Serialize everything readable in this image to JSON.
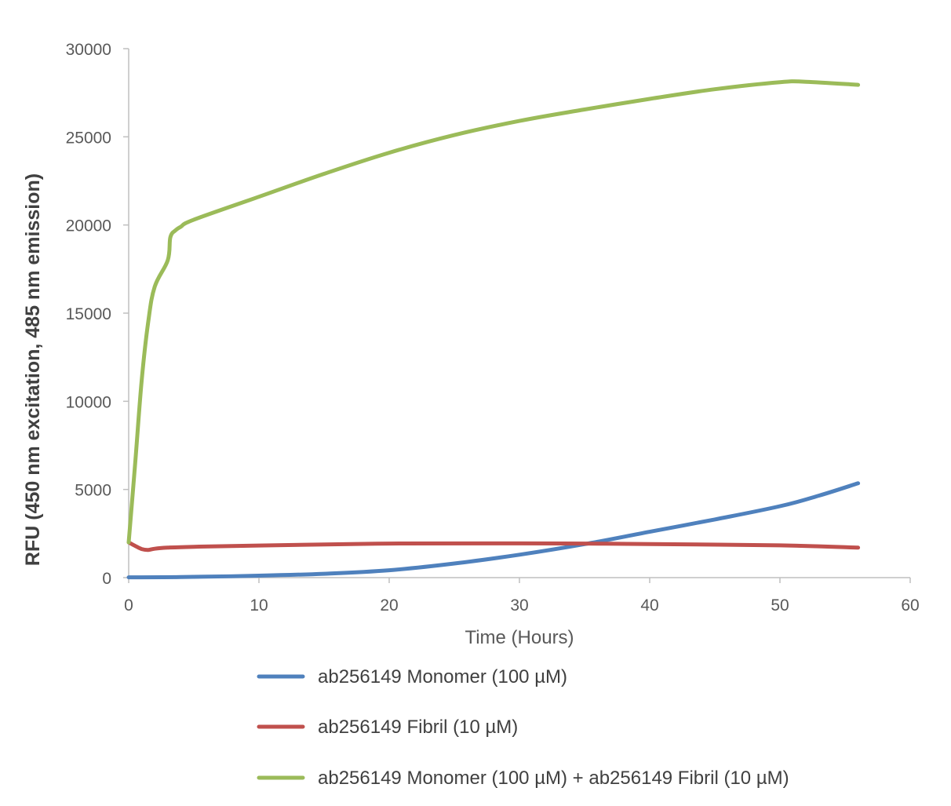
{
  "chart_data": {
    "type": "line",
    "title": "",
    "xlabel": "Time (Hours)",
    "ylabel": "RFU (450 nm excitation, 485 nm emission)",
    "xlim": [
      0,
      60
    ],
    "ylim": [
      0,
      30000
    ],
    "x_ticks": [
      "0",
      "10",
      "20",
      "30",
      "40",
      "50",
      "60"
    ],
    "y_ticks": [
      "0",
      "5000",
      "10000",
      "15000",
      "20000",
      "25000",
      "30000"
    ],
    "grid": false,
    "legend_position": "bottom",
    "series": [
      {
        "name": "ab256149 Monomer (100 µM)",
        "color": "#4f81bd",
        "x": [
          0,
          4,
          10,
          15,
          20,
          25,
          30,
          35,
          40,
          45,
          50,
          53,
          56
        ],
        "y": [
          20,
          30,
          110,
          220,
          420,
          800,
          1300,
          1900,
          2600,
          3300,
          4050,
          4650,
          5350
        ]
      },
      {
        "name": "ab256149 Fibril (10 µM)",
        "color": "#c0504d",
        "x": [
          0,
          0.5,
          1,
          1.5,
          2,
          3,
          5,
          10,
          20,
          30,
          35,
          40,
          50,
          56
        ],
        "y": [
          2000,
          1800,
          1620,
          1570,
          1640,
          1700,
          1750,
          1820,
          1930,
          1940,
          1930,
          1900,
          1830,
          1700
        ]
      },
      {
        "name": "ab256149 Monomer (100 µM) + ab256149 Fibril (10 µM)",
        "color": "#9bbb59",
        "x": [
          0,
          0.5,
          1,
          1.5,
          2,
          3,
          3.2,
          3.6,
          4,
          5,
          10,
          15,
          20,
          25,
          30,
          35,
          40,
          45,
          50,
          52,
          56
        ],
        "y": [
          2000,
          6500,
          11200,
          14500,
          16500,
          18000,
          19300,
          19700,
          19900,
          20300,
          21600,
          22900,
          24100,
          25100,
          25900,
          26550,
          27150,
          27700,
          28100,
          28120,
          27950
        ]
      }
    ]
  }
}
